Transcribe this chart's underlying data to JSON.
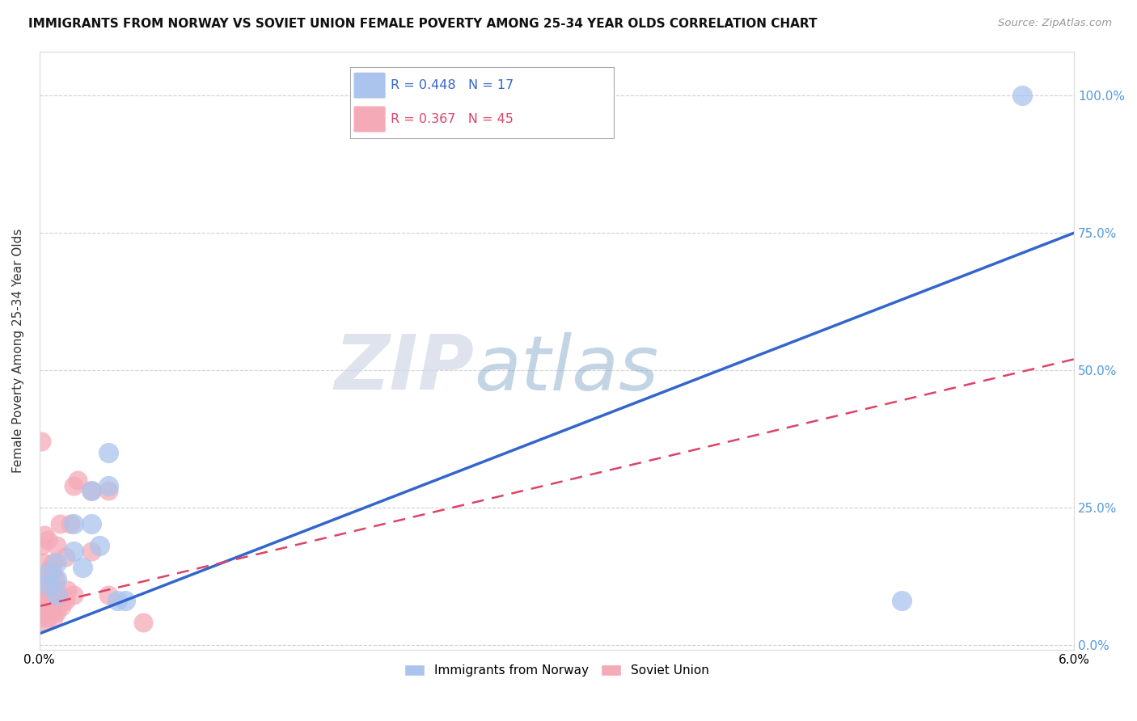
{
  "title": "IMMIGRANTS FROM NORWAY VS SOVIET UNION FEMALE POVERTY AMONG 25-34 YEAR OLDS CORRELATION CHART",
  "source": "Source: ZipAtlas.com",
  "ylabel": "Female Poverty Among 25-34 Year Olds",
  "xlim": [
    0.0,
    0.06
  ],
  "ylim": [
    -0.01,
    1.08
  ],
  "norway_R": 0.448,
  "norway_N": 17,
  "soviet_R": 0.367,
  "soviet_N": 45,
  "norway_color": "#aac4ed",
  "soviet_color": "#f5aab8",
  "norway_line_color": "#3366cc",
  "soviet_line_color": "#dd4466",
  "watermark_zip": "ZIP",
  "watermark_atlas": "atlas",
  "background_color": "#ffffff",
  "grid_color": "#cccccc",
  "norway_points_x": [
    0.0005,
    0.0005,
    0.001,
    0.001,
    0.001,
    0.002,
    0.002,
    0.0025,
    0.003,
    0.003,
    0.0035,
    0.004,
    0.004,
    0.0045,
    0.005,
    0.05,
    0.057
  ],
  "norway_points_y": [
    0.13,
    0.11,
    0.15,
    0.12,
    0.09,
    0.22,
    0.17,
    0.14,
    0.28,
    0.22,
    0.18,
    0.35,
    0.29,
    0.08,
    0.08,
    0.08,
    1.0
  ],
  "soviet_points_x": [
    0.0001,
    0.0001,
    0.0001,
    0.0001,
    0.0002,
    0.0002,
    0.0002,
    0.0003,
    0.0003,
    0.0003,
    0.0003,
    0.0004,
    0.0004,
    0.0005,
    0.0005,
    0.0005,
    0.0005,
    0.0006,
    0.0006,
    0.0007,
    0.0007,
    0.0008,
    0.0008,
    0.0008,
    0.0009,
    0.0009,
    0.001,
    0.001,
    0.001,
    0.0012,
    0.0012,
    0.0013,
    0.0015,
    0.0015,
    0.0016,
    0.0018,
    0.002,
    0.002,
    0.0022,
    0.003,
    0.003,
    0.004,
    0.004,
    0.006,
    0.0001
  ],
  "soviet_points_y": [
    0.05,
    0.08,
    0.12,
    0.18,
    0.06,
    0.1,
    0.15,
    0.04,
    0.08,
    0.12,
    0.2,
    0.06,
    0.1,
    0.05,
    0.08,
    0.12,
    0.19,
    0.07,
    0.14,
    0.06,
    0.13,
    0.05,
    0.09,
    0.15,
    0.07,
    0.12,
    0.06,
    0.1,
    0.18,
    0.08,
    0.22,
    0.07,
    0.08,
    0.16,
    0.1,
    0.22,
    0.09,
    0.29,
    0.3,
    0.17,
    0.28,
    0.09,
    0.28,
    0.04,
    0.37
  ],
  "norway_line_x0": 0.0,
  "norway_line_y0": 0.02,
  "norway_line_x1": 0.06,
  "norway_line_y1": 0.75,
  "soviet_line_x0": 0.0,
  "soviet_line_y0": 0.07,
  "soviet_line_x1": 0.06,
  "soviet_line_y1": 0.52,
  "y_ticks": [
    0.0,
    0.25,
    0.5,
    0.75,
    1.0
  ],
  "y_tick_labels": [
    "0.0%",
    "25.0%",
    "50.0%",
    "75.0%",
    "100.0%"
  ],
  "x_tick_left_label": "0.0%",
  "x_tick_right_label": "6.0%"
}
